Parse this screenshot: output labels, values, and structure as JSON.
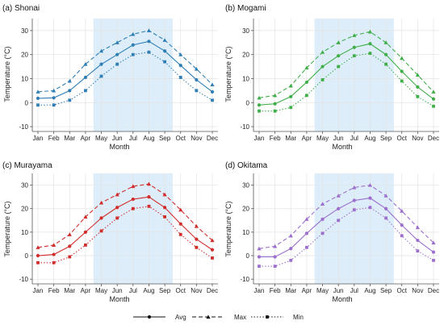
{
  "chart_data": {
    "type": "line",
    "months": [
      "Jan",
      "Feb",
      "Mar",
      "Apr",
      "May",
      "Jun",
      "Jul",
      "Aug",
      "Sep",
      "Oct",
      "Nov",
      "Dec"
    ],
    "highlight_months": [
      "May",
      "Sep"
    ],
    "highlight_color": "#ddeefa",
    "xlabel": "Month",
    "ylabel": "Temperature (°C)",
    "ylim": [
      -12,
      35
    ],
    "yticks": [
      -10,
      0,
      10,
      20,
      30
    ],
    "grid": true,
    "legend": {
      "position": "bottom",
      "entries": [
        {
          "label": "Avg",
          "line": "solid",
          "marker": "circle"
        },
        {
          "label": "Max",
          "line": "dashed",
          "marker": "triangle"
        },
        {
          "label": "Min",
          "line": "dotted",
          "marker": "square"
        }
      ]
    },
    "panels": [
      {
        "title": "(a) Shonai",
        "color": "#2f7fb5",
        "series": [
          {
            "name": "Avg",
            "values": [
              1.8,
              2.0,
              5.0,
              10.5,
              16.0,
              20.0,
              24.0,
              25.5,
              21.5,
              15.5,
              9.5,
              4.5
            ]
          },
          {
            "name": "Max",
            "values": [
              4.5,
              5.0,
              9.0,
              16.0,
              21.5,
              25.0,
              28.5,
              30.0,
              26.0,
              20.0,
              14.0,
              7.5
            ]
          },
          {
            "name": "Min",
            "values": [
              -1.0,
              -1.0,
              1.0,
              5.0,
              11.0,
              16.0,
              20.0,
              21.0,
              17.0,
              10.5,
              5.0,
              1.0
            ]
          }
        ]
      },
      {
        "title": "(b) Mogami",
        "color": "#3fae49",
        "series": [
          {
            "name": "Avg",
            "values": [
              -1.0,
              -0.5,
              2.5,
              8.5,
              15.0,
              19.5,
              23.0,
              24.5,
              20.0,
              13.0,
              6.5,
              1.5
            ]
          },
          {
            "name": "Max",
            "values": [
              2.0,
              3.0,
              7.0,
              14.5,
              21.0,
              25.0,
              28.0,
              29.5,
              25.0,
              18.5,
              11.5,
              4.5
            ]
          },
          {
            "name": "Min",
            "values": [
              -3.5,
              -3.5,
              -2.0,
              3.0,
              9.5,
              15.0,
              19.5,
              20.5,
              16.0,
              9.0,
              2.5,
              -1.5
            ]
          }
        ]
      },
      {
        "title": "(c) Murayama",
        "color": "#d12c2c",
        "series": [
          {
            "name": "Avg",
            "values": [
              0.0,
              0.5,
              4.0,
              10.0,
              16.0,
              20.5,
              24.0,
              25.0,
              20.5,
              13.5,
              7.0,
              2.5
            ]
          },
          {
            "name": "Max",
            "values": [
              3.5,
              4.5,
              9.0,
              16.5,
              22.5,
              26.0,
              29.5,
              30.5,
              26.0,
              19.5,
              12.5,
              6.5
            ]
          },
          {
            "name": "Min",
            "values": [
              -3.0,
              -3.0,
              -0.5,
              4.5,
              10.5,
              16.0,
              20.0,
              21.0,
              16.5,
              9.0,
              3.5,
              -1.0
            ]
          }
        ]
      },
      {
        "title": "(d) Okitama",
        "color": "#9c6fcc",
        "series": [
          {
            "name": "Avg",
            "values": [
              -0.5,
              -0.5,
              3.0,
              9.5,
              15.5,
              20.0,
              23.5,
              24.5,
              20.0,
              13.0,
              6.5,
              1.5
            ]
          },
          {
            "name": "Max",
            "values": [
              3.0,
              4.0,
              8.5,
              15.5,
              22.0,
              25.5,
              29.0,
              30.0,
              25.5,
              19.0,
              12.0,
              5.5
            ]
          },
          {
            "name": "Min",
            "values": [
              -4.5,
              -4.5,
              -2.0,
              3.5,
              9.5,
              15.0,
              19.5,
              20.5,
              16.0,
              8.5,
              2.0,
              -2.0
            ]
          }
        ]
      }
    ]
  }
}
